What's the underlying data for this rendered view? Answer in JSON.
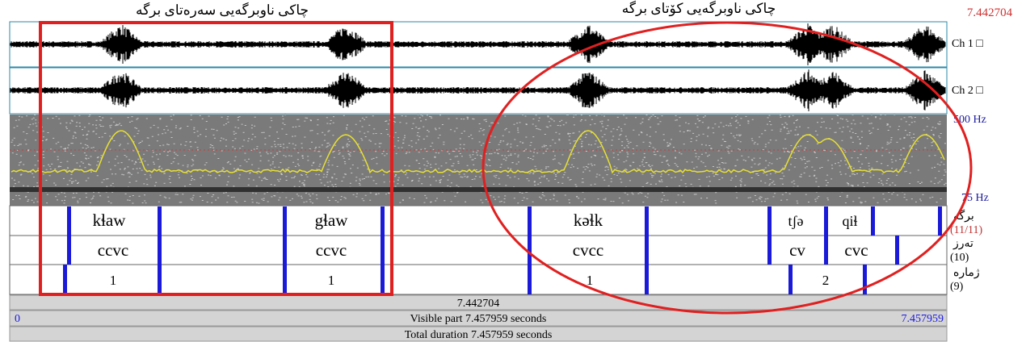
{
  "header": {
    "left_title": "چاکی ناوبرگەیی سەرەتای برگە",
    "right_title": "چاکی ناوبرگەیی کۆتای برگە",
    "cursor_time": "7.442704"
  },
  "channels": [
    "Ch 1 □",
    "Ch 2 □"
  ],
  "spectrogram": {
    "top_freq": "500 Hz",
    "bottom_freq": "75 Hz"
  },
  "tiers": [
    {
      "name": "برگە",
      "count": "(11/11)",
      "intervals": [
        "kɬaw",
        "gɬaw",
        "kəɬk",
        "tʃə",
        "qiɬ"
      ]
    },
    {
      "name": "تەرز",
      "count": "(10)",
      "intervals": [
        "ccvc",
        "ccvc",
        "cvcc",
        "cv",
        "cvc"
      ]
    },
    {
      "name": "ژمارە",
      "count": "(9)",
      "intervals": [
        "1",
        "1",
        "1",
        "2"
      ]
    }
  ],
  "footer": {
    "cursor": "7.442704",
    "start": "0",
    "visible": "Visible part 7.457959 seconds",
    "end": "7.457959",
    "total": "Total duration 7.457959 seconds"
  }
}
